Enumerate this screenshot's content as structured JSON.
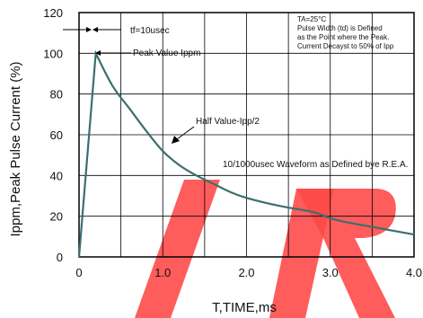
{
  "chart_data": {
    "type": "line",
    "xlabel": "T,TIME,ms",
    "ylabel": "Ippm,Peak Pulse Current (%)",
    "xlim": [
      0,
      4.0
    ],
    "ylim": [
      0,
      120
    ],
    "x_ticks": [
      "0",
      "1.0",
      "2.0",
      "3.0",
      "4.0"
    ],
    "y_ticks": [
      "0",
      "20",
      "40",
      "60",
      "80",
      "100",
      "120"
    ],
    "grid": true,
    "series": [
      {
        "color": "#3d6e6e",
        "points": [
          [
            0,
            0
          ],
          [
            0.2,
            100
          ],
          [
            0.4,
            84
          ],
          [
            0.6,
            73
          ],
          [
            0.8,
            62
          ],
          [
            1.0,
            52
          ],
          [
            1.2,
            45
          ],
          [
            1.4,
            40
          ],
          [
            1.6,
            36
          ],
          [
            1.8,
            32
          ],
          [
            2.0,
            29
          ],
          [
            2.4,
            25
          ],
          [
            2.8,
            22
          ],
          [
            3.0,
            19
          ],
          [
            3.2,
            17
          ],
          [
            3.6,
            14
          ],
          [
            4.0,
            11
          ]
        ]
      }
    ],
    "annotations": {
      "rise_time": "tf=10usec",
      "peak": "Peak Value Ippm",
      "half": "Half Value-Ipp/2",
      "waveform": "10/1000usec Waveform as Defined bye R.E.A.",
      "conditions": [
        "TA=25°C",
        "Pulse    Width (td) is Defined",
        "as the Point where the Peak.",
        "Current  Decayst to 50% of Ipp"
      ]
    }
  },
  "watermark_color": "#ff2a2a"
}
